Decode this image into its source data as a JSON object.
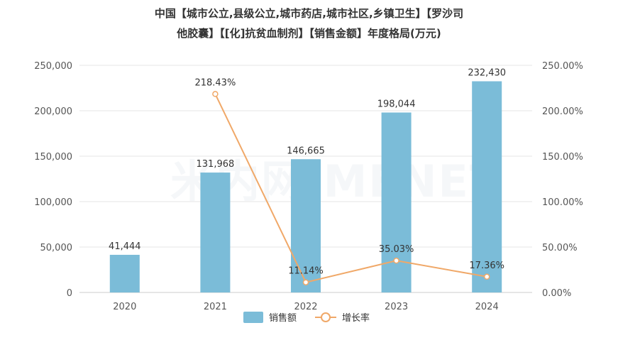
{
  "chart_data": {
    "type": "bar",
    "title_line1": "中国【城市公立,县级公立,城市药店,城市社区,乡镇卫生】【罗沙司",
    "title_line2": "他胶囊】【[化]抗贫血制剂】【销售金额】年度格局(万元)",
    "categories": [
      "2020",
      "2021",
      "2022",
      "2023",
      "2024"
    ],
    "series": [
      {
        "name": "销售额",
        "type": "bar",
        "axis": "left",
        "values": [
          41444,
          131968,
          146665,
          198044,
          232430
        ],
        "labels": [
          "41,444",
          "131,968",
          "146,665",
          "198,044",
          "232,430"
        ],
        "color": "#7bbcd8"
      },
      {
        "name": "增长率",
        "type": "line",
        "axis": "right",
        "values": [
          null,
          218.43,
          11.14,
          35.03,
          17.36
        ],
        "labels": [
          "",
          "218.43%",
          "11.14%",
          "35.03%",
          "17.36%"
        ],
        "color": "#f0a868"
      }
    ],
    "y_left": {
      "min": 0,
      "max": 250000,
      "ticks": [
        "0",
        "50,000",
        "100,000",
        "150,000",
        "200,000",
        "250,000"
      ]
    },
    "y_right": {
      "min": 0,
      "max": 250,
      "ticks": [
        "0.00%",
        "50.00%",
        "100.00%",
        "150.00%",
        "200.00%",
        "250.00%"
      ]
    },
    "grid": true,
    "legend_position": "bottom-center",
    "watermark": "米内网MENET"
  }
}
